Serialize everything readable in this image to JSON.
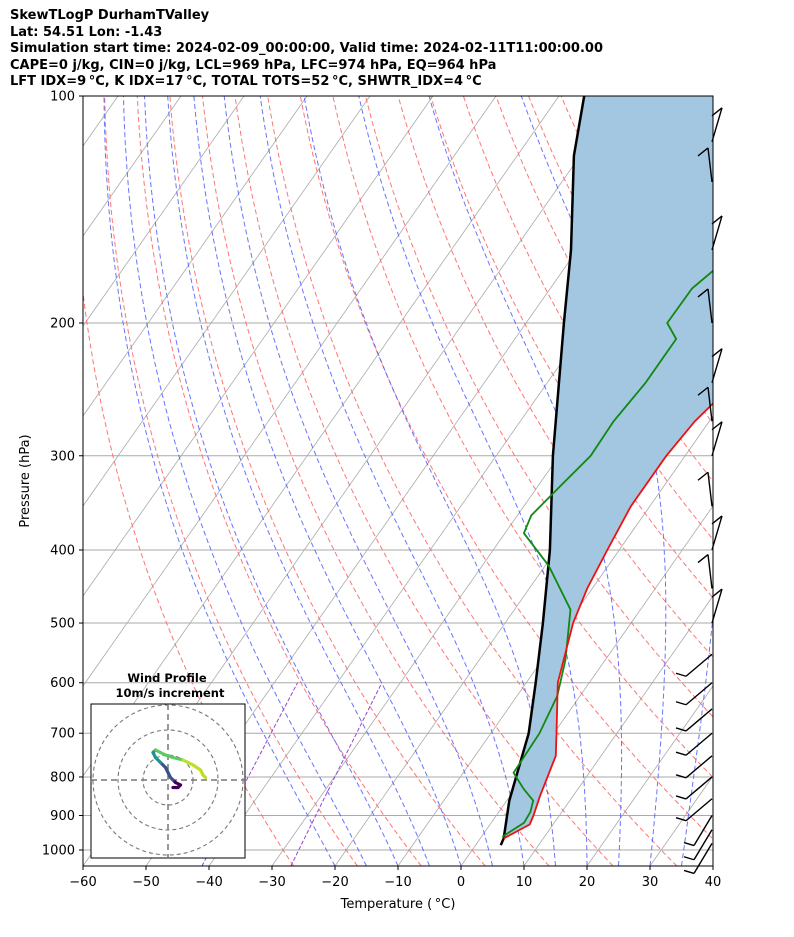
{
  "header": {
    "line1": "SkewTLogP DurhamTValley",
    "line2": "Lat: 54.51   Lon: -1.43",
    "line3": "Simulation start time: 2024-02-09_00:00:00, Valid time: 2024-02-11T11:00:00.00",
    "line4": "CAPE=0 j/kg, CIN=0 j/kg, LCL=969 hPa, LFC=974 hPa, EQ=964 hPa",
    "line5": "LFT IDX=9 °C, K IDX=17 °C, TOTAL TOTS=52 °C, SHWTR_IDX=4 °C"
  },
  "chart_data": {
    "type": "line",
    "xlabel": "Temperature ( °C)",
    "ylabel": "Pressure (hPa)",
    "xlim": [
      -60,
      40
    ],
    "ylim": [
      1050,
      100
    ],
    "y_scale": "log",
    "x_ticks": [
      "−60",
      "−50",
      "−40",
      "−30",
      "−20",
      "−10",
      "0",
      "10",
      "20",
      "30",
      "40"
    ],
    "y_ticks": [
      "100",
      "200",
      "300",
      "400",
      "500",
      "600",
      "700",
      "800",
      "900",
      "1000"
    ],
    "grid": true,
    "colors": {
      "temperature": "#ee1111",
      "dewpoint": "#118811",
      "parcel": "#000000",
      "cape_fill": "#a3c7e0",
      "isotherm": "#aaaaaa",
      "dry_adiabat": "#ff6666",
      "moist_adiabat": "#4d5cff",
      "mixing_ratio": "#9944cc"
    },
    "series": [
      {
        "role": "temperature",
        "points": [
          [
            3.7,
            965
          ],
          [
            6.3,
            925
          ],
          [
            5.9,
            900
          ],
          [
            4.8,
            850
          ],
          [
            2.8,
            750
          ],
          [
            0.4,
            700
          ],
          [
            -5.0,
            600
          ],
          [
            -9.2,
            500
          ],
          [
            -10.8,
            450
          ],
          [
            -11.9,
            400
          ],
          [
            -13.0,
            350
          ],
          [
            -13.0,
            300
          ],
          [
            -12.3,
            270
          ],
          [
            -9.6,
            230
          ],
          [
            -6.0,
            200
          ],
          [
            -2.5,
            180
          ],
          [
            2.8,
            160
          ],
          [
            6.8,
            145
          ],
          [
            12.0,
            125
          ],
          [
            15.3,
            110
          ],
          [
            17.0,
            100
          ]
        ]
      },
      {
        "role": "dewpoint",
        "points": [
          [
            3.3,
            960
          ],
          [
            5.2,
            920
          ],
          [
            5.0,
            890
          ],
          [
            4.2,
            860
          ],
          [
            1.4,
            830
          ],
          [
            -2.0,
            790
          ],
          [
            -2.3,
            700
          ],
          [
            -3.6,
            625
          ],
          [
            -6.3,
            560
          ],
          [
            -11.1,
            480
          ],
          [
            -19.4,
            420
          ],
          [
            -27.0,
            380
          ],
          [
            -27.8,
            360
          ],
          [
            -26.5,
            330
          ],
          [
            -25.0,
            300
          ],
          [
            -25.2,
            270
          ],
          [
            -24.4,
            240
          ],
          [
            -24.4,
            210
          ],
          [
            -27.6,
            200
          ],
          [
            -27.5,
            180
          ],
          [
            -24.5,
            160
          ],
          [
            -19.0,
            130
          ],
          [
            -10.5,
            100
          ]
        ]
      },
      {
        "role": "parcel",
        "points": [
          [
            4.0,
            985
          ],
          [
            3.7,
            965
          ],
          [
            0.4,
            860
          ],
          [
            -4.0,
            700
          ],
          [
            -8.5,
            600
          ],
          [
            -14.0,
            500
          ],
          [
            -21.0,
            400
          ],
          [
            -31.0,
            300
          ],
          [
            -44.0,
            200
          ],
          [
            -51.0,
            160
          ],
          [
            -61.0,
            120
          ],
          [
            -66.0,
            100
          ]
        ]
      }
    ],
    "wind_barbs_pressure_hpa": [
      980,
      940,
      900,
      855,
      800,
      750,
      700,
      650,
      600,
      550,
      500,
      450,
      400,
      350,
      300,
      270,
      240,
      200,
      160,
      130,
      115
    ],
    "hodograph": {
      "title": "Wind Profile",
      "subtitle": "10m/s increment",
      "ring_speeds": [
        10,
        20,
        30
      ],
      "trace": [
        [
          2,
          -3
        ],
        [
          4,
          -3
        ],
        [
          5,
          -2
        ],
        [
          3,
          -1
        ],
        [
          2,
          0
        ],
        [
          1,
          1
        ],
        [
          0,
          3
        ],
        [
          -1,
          5
        ],
        [
          -3,
          7
        ],
        [
          -5,
          9
        ],
        [
          -6,
          11
        ],
        [
          -5,
          12
        ],
        [
          -3,
          11
        ],
        [
          -1,
          10
        ],
        [
          2,
          9
        ],
        [
          6,
          8
        ],
        [
          10,
          6
        ],
        [
          13,
          4
        ],
        [
          14,
          2
        ],
        [
          15,
          1
        ]
      ]
    }
  }
}
